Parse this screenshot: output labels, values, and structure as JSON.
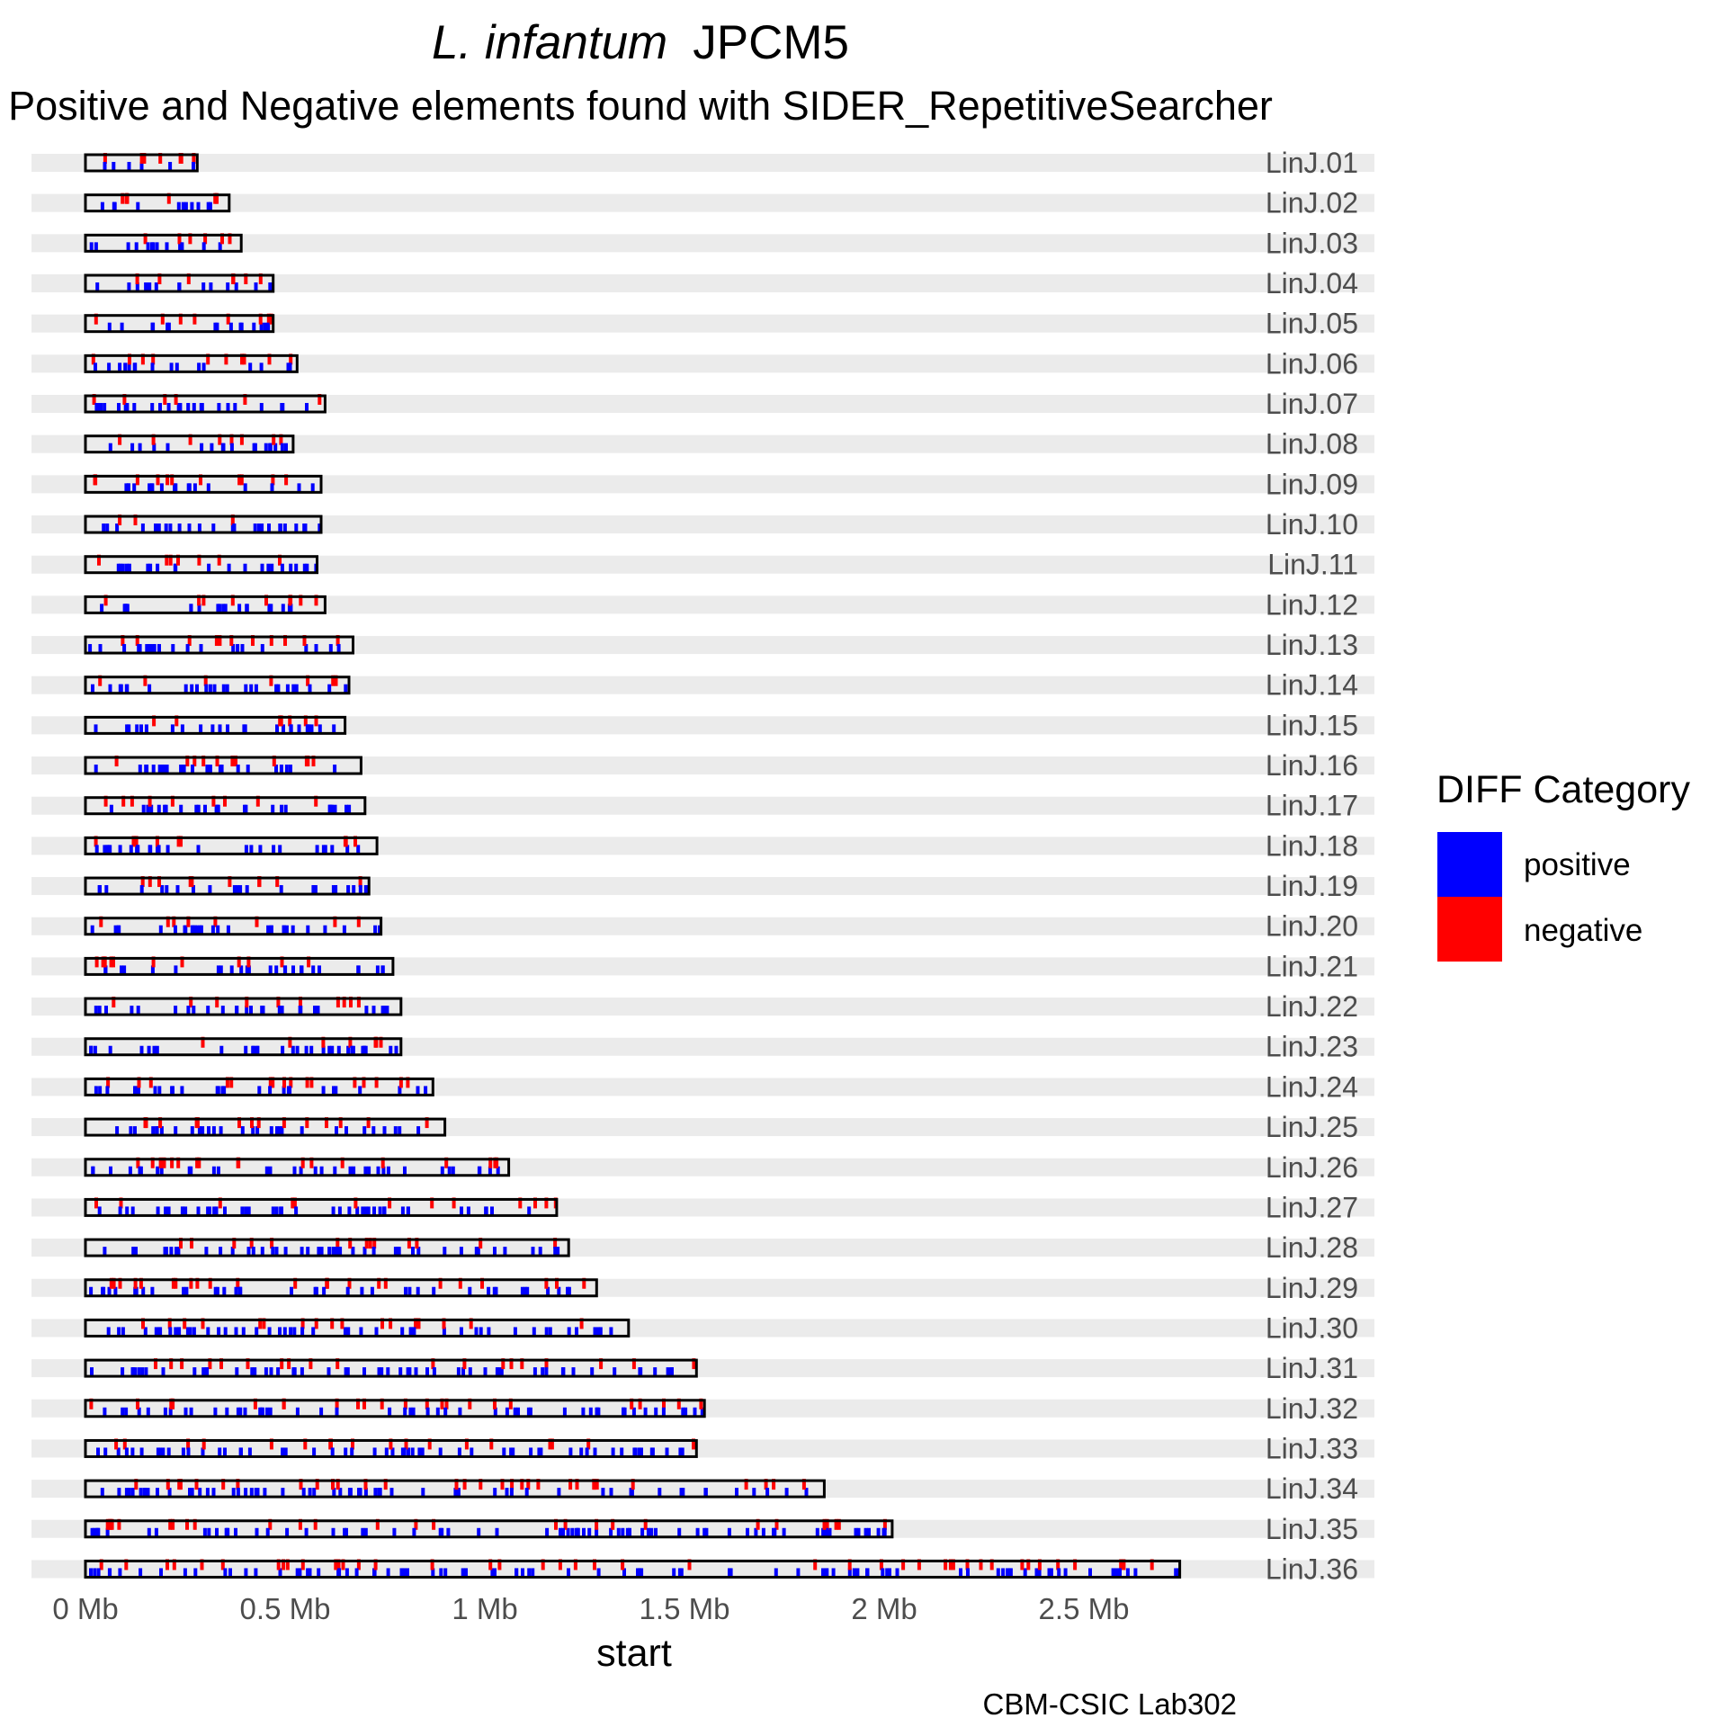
{
  "chart_data": {
    "type": "chromosome_map",
    "title": {
      "italic": "L. infantum",
      "plain": "JPCM5"
    },
    "subtitle": "Positive and Negative elements found with SIDER_RepetitiveSearcher",
    "xlabel": "start",
    "x_unit": "Mb",
    "xlim": [
      0,
      2.9
    ],
    "x_ticks": [
      {
        "value": 0,
        "label": "0 Mb"
      },
      {
        "value": 0.5,
        "label": "0.5 Mb"
      },
      {
        "value": 1,
        "label": "1 Mb"
      },
      {
        "value": 1.5,
        "label": "1.5 Mb"
      },
      {
        "value": 2,
        "label": "2 Mb"
      },
      {
        "value": 2.5,
        "label": "2.5 Mb"
      }
    ],
    "legend": {
      "title": "DIFF Category",
      "placement": "right",
      "items": [
        {
          "label": "positive",
          "color": "#0000ff"
        },
        {
          "label": "negative",
          "color": "#ff0000"
        }
      ]
    },
    "colors": {
      "positive": "#0000ff",
      "negative": "#ff0000",
      "track": "#ebebeb",
      "outline": "#000000"
    },
    "chromosomes": [
      {
        "name": "LinJ.01",
        "length_mb": 0.28
      },
      {
        "name": "LinJ.02",
        "length_mb": 0.36
      },
      {
        "name": "LinJ.03",
        "length_mb": 0.39
      },
      {
        "name": "LinJ.04",
        "length_mb": 0.47
      },
      {
        "name": "LinJ.05",
        "length_mb": 0.47
      },
      {
        "name": "LinJ.06",
        "length_mb": 0.53
      },
      {
        "name": "LinJ.07",
        "length_mb": 0.6
      },
      {
        "name": "LinJ.08",
        "length_mb": 0.52
      },
      {
        "name": "LinJ.09",
        "length_mb": 0.59
      },
      {
        "name": "LinJ.10",
        "length_mb": 0.59
      },
      {
        "name": "LinJ.11",
        "length_mb": 0.58
      },
      {
        "name": "LinJ.12",
        "length_mb": 0.6
      },
      {
        "name": "LinJ.13",
        "length_mb": 0.67
      },
      {
        "name": "LinJ.14",
        "length_mb": 0.66
      },
      {
        "name": "LinJ.15",
        "length_mb": 0.65
      },
      {
        "name": "LinJ.16",
        "length_mb": 0.69
      },
      {
        "name": "LinJ.17",
        "length_mb": 0.7
      },
      {
        "name": "LinJ.18",
        "length_mb": 0.73
      },
      {
        "name": "LinJ.19",
        "length_mb": 0.71
      },
      {
        "name": "LinJ.20",
        "length_mb": 0.74
      },
      {
        "name": "LinJ.21",
        "length_mb": 0.77
      },
      {
        "name": "LinJ.22",
        "length_mb": 0.79
      },
      {
        "name": "LinJ.23",
        "length_mb": 0.79
      },
      {
        "name": "LinJ.24",
        "length_mb": 0.87
      },
      {
        "name": "LinJ.25",
        "length_mb": 0.9
      },
      {
        "name": "LinJ.26",
        "length_mb": 1.06
      },
      {
        "name": "LinJ.27",
        "length_mb": 1.18
      },
      {
        "name": "LinJ.28",
        "length_mb": 1.21
      },
      {
        "name": "LinJ.29",
        "length_mb": 1.28
      },
      {
        "name": "LinJ.30",
        "length_mb": 1.36
      },
      {
        "name": "LinJ.31",
        "length_mb": 1.53
      },
      {
        "name": "LinJ.32",
        "length_mb": 1.55
      },
      {
        "name": "LinJ.33",
        "length_mb": 1.53
      },
      {
        "name": "LinJ.34",
        "length_mb": 1.85
      },
      {
        "name": "LinJ.35",
        "length_mb": 2.02
      },
      {
        "name": "LinJ.36",
        "length_mb": 2.74
      }
    ]
  },
  "caption": "CBM-CSIC Lab302"
}
